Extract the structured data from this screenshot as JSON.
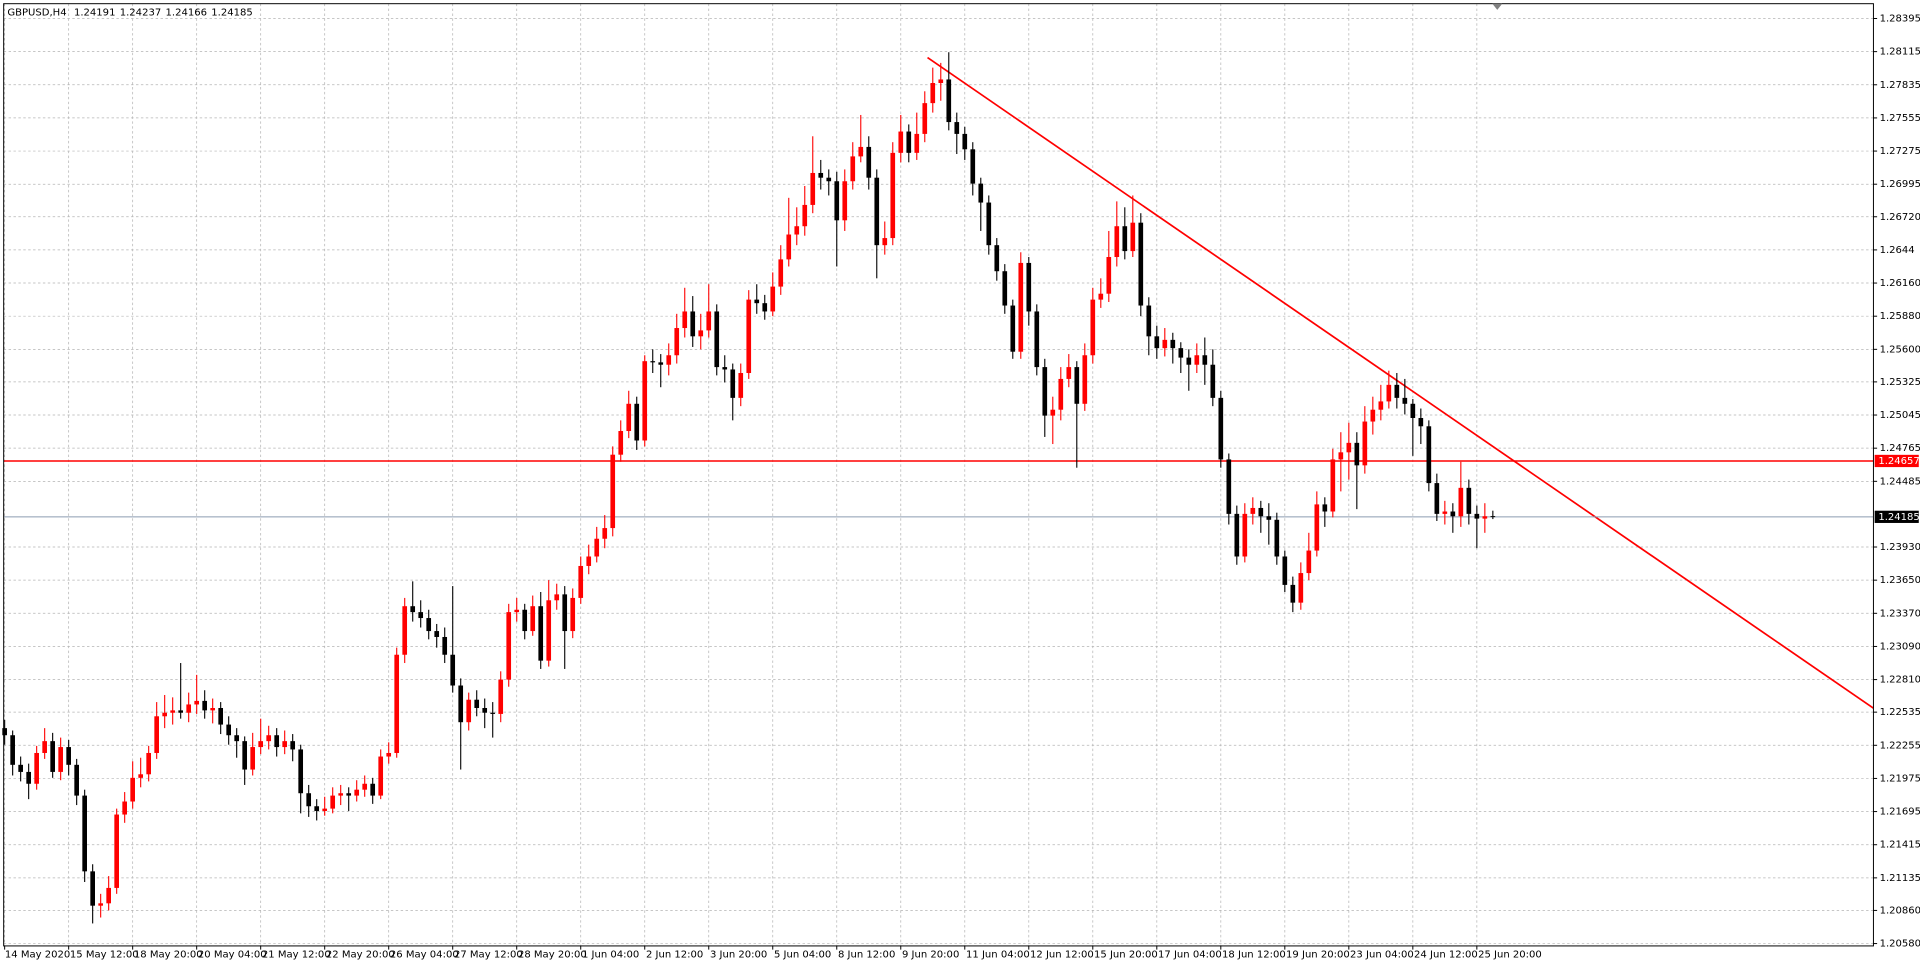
{
  "chart_data": {
    "type": "candlestick",
    "symbol": "GBPUSD,H4",
    "up_color": "#ff0000",
    "down_color": "#000000",
    "grid": true,
    "ylim": [
      1.2056,
      1.2852
    ],
    "yticks": [
      1.28395,
      1.28115,
      1.27835,
      1.27555,
      1.27275,
      1.26995,
      {
        "value": 1.2672,
        "label": "1.26720"
      },
      1.2644,
      {
        "value": 1.2616,
        "label": "1.26160"
      },
      {
        "value": 1.2588,
        "label": "1.25880"
      },
      {
        "value": 1.256,
        "label": "1.25600"
      },
      1.25325,
      1.25045,
      1.24765,
      1.24485,
      {
        "value": 1.2393,
        "label": "1.23930"
      },
      {
        "value": 1.2365,
        "label": "1.23650"
      },
      {
        "value": 1.2337,
        "label": "1.23370"
      },
      {
        "value": 1.2309,
        "label": "1.23090"
      },
      {
        "value": 1.2281,
        "label": "1.22810"
      },
      1.22535,
      1.22255,
      1.21975,
      1.21695,
      1.21415,
      1.21135,
      {
        "value": 1.2086,
        "label": "1.20860"
      },
      {
        "value": 1.2058,
        "label": "1.20580"
      }
    ],
    "levels": [
      1.24657
    ],
    "categories": [
      "14 May 2020",
      null,
      null,
      null,
      null,
      null,
      null,
      null,
      "15 May 12:00",
      null,
      null,
      null,
      null,
      null,
      null,
      null,
      "18 May 20:00",
      null,
      null,
      null,
      null,
      null,
      null,
      null,
      "20 May 04:00",
      null,
      null,
      null,
      null,
      null,
      null,
      null,
      "21 May 12:00",
      null,
      null,
      null,
      null,
      null,
      null,
      null,
      "22 May 20:00",
      null,
      null,
      null,
      null,
      null,
      null,
      null,
      "26 May 04:00",
      null,
      null,
      null,
      null,
      null,
      null,
      null,
      "27 May 12:00",
      null,
      null,
      null,
      null,
      null,
      null,
      null,
      "28 May 20:00",
      null,
      null,
      null,
      null,
      null,
      null,
      null,
      "1 Jun 04:00",
      null,
      null,
      null,
      null,
      null,
      null,
      null,
      "2 Jun 12:00",
      null,
      null,
      null,
      null,
      null,
      null,
      null,
      "3 Jun 20:00",
      null,
      null,
      null,
      null,
      null,
      null,
      null,
      "5 Jun 04:00",
      null,
      null,
      null,
      null,
      null,
      null,
      null,
      "8 Jun 12:00",
      null,
      null,
      null,
      null,
      null,
      null,
      null,
      "9 Jun 20:00",
      null,
      null,
      null,
      null,
      null,
      null,
      null,
      "11 Jun 04:00",
      null,
      null,
      null,
      null,
      null,
      null,
      null,
      "12 Jun 12:00",
      null,
      null,
      null,
      null,
      null,
      null,
      null,
      "15 Jun 20:00",
      null,
      null,
      null,
      null,
      null,
      null,
      null,
      "17 Jun 04:00",
      null,
      null,
      null,
      null,
      null,
      null,
      null,
      "18 Jun 12:00",
      null,
      null,
      null,
      null,
      null,
      null,
      null,
      "19 Jun 20:00",
      null,
      null,
      null,
      null,
      null,
      null,
      null,
      "23 Jun 04:00",
      null,
      null,
      null,
      null,
      null,
      null,
      null,
      "24 Jun 12:00",
      null,
      null,
      null,
      null,
      null,
      null,
      null,
      "25 Jun 20:00",
      null,
      null
    ],
    "ohlc": [
      [
        1.224,
        1.2247,
        1.2226,
        1.2234
      ],
      [
        1.2234,
        1.2238,
        1.22,
        1.2209
      ],
      [
        1.2209,
        1.2216,
        1.2195,
        1.2203
      ],
      [
        1.2203,
        1.221,
        1.218,
        1.2193
      ],
      [
        1.2193,
        1.2225,
        1.2188,
        1.2219
      ],
      [
        1.2219,
        1.224,
        1.2214,
        1.2229
      ],
      [
        1.2229,
        1.2236,
        1.2198,
        1.2203
      ],
      [
        1.2203,
        1.2232,
        1.2196,
        1.2224
      ],
      [
        1.2224,
        1.223,
        1.22,
        1.2209
      ],
      [
        1.2209,
        1.2214,
        1.2175,
        1.2183
      ],
      [
        1.2183,
        1.2188,
        1.211,
        1.2119
      ],
      [
        1.2119,
        1.2125,
        1.2075,
        1.209
      ],
      [
        1.209,
        1.21,
        1.208,
        1.2092
      ],
      [
        1.2092,
        1.2115,
        1.2086,
        1.2105
      ],
      [
        1.2105,
        1.2172,
        1.21,
        1.2167
      ],
      [
        1.2167,
        1.2186,
        1.216,
        1.2178
      ],
      [
        1.2178,
        1.2212,
        1.2172,
        1.2198
      ],
      [
        1.2198,
        1.2215,
        1.219,
        1.2201
      ],
      [
        1.2201,
        1.2225,
        1.2195,
        1.2219
      ],
      [
        1.2219,
        1.2262,
        1.2214,
        1.225
      ],
      [
        1.225,
        1.2268,
        1.224,
        1.2253
      ],
      [
        1.2253,
        1.2266,
        1.2243,
        1.2255
      ],
      [
        1.2255,
        1.2295,
        1.2248,
        1.2253
      ],
      [
        1.2253,
        1.227,
        1.2245,
        1.226
      ],
      [
        1.226,
        1.2285,
        1.2252,
        1.2263
      ],
      [
        1.2263,
        1.2272,
        1.2248,
        1.2255
      ],
      [
        1.2255,
        1.2265,
        1.2244,
        1.2257
      ],
      [
        1.2257,
        1.2262,
        1.2235,
        1.2243
      ],
      [
        1.2243,
        1.225,
        1.2226,
        1.2234
      ],
      [
        1.2234,
        1.224,
        1.2215,
        1.2229
      ],
      [
        1.2229,
        1.2233,
        1.2192,
        1.2205
      ],
      [
        1.2205,
        1.2236,
        1.22,
        1.2224
      ],
      [
        1.2224,
        1.2248,
        1.2218,
        1.2229
      ],
      [
        1.2229,
        1.2242,
        1.2222,
        1.2234
      ],
      [
        1.2234,
        1.224,
        1.2216,
        1.2224
      ],
      [
        1.2224,
        1.2238,
        1.2218,
        1.2229
      ],
      [
        1.2229,
        1.2235,
        1.2212,
        1.2222
      ],
      [
        1.2222,
        1.2226,
        1.2168,
        1.2185
      ],
      [
        1.2185,
        1.2192,
        1.2165,
        1.2174
      ],
      [
        1.2174,
        1.218,
        1.2162,
        1.217
      ],
      [
        1.217,
        1.2182,
        1.2166,
        1.2172
      ],
      [
        1.2172,
        1.219,
        1.2168,
        1.2183
      ],
      [
        1.2183,
        1.2192,
        1.2175,
        1.2185
      ],
      [
        1.2185,
        1.219,
        1.217,
        1.2183
      ],
      [
        1.2183,
        1.2196,
        1.2178,
        1.2188
      ],
      [
        1.2188,
        1.22,
        1.2182,
        1.2193
      ],
      [
        1.2193,
        1.2198,
        1.2176,
        1.2183
      ],
      [
        1.2183,
        1.2222,
        1.218,
        1.2216
      ],
      [
        1.2216,
        1.2228,
        1.221,
        1.2219
      ],
      [
        1.2219,
        1.2308,
        1.2215,
        1.2302
      ],
      [
        1.2302,
        1.235,
        1.2295,
        1.2343
      ],
      [
        1.2343,
        1.2364,
        1.233,
        1.2338
      ],
      [
        1.2338,
        1.2348,
        1.2325,
        1.2333
      ],
      [
        1.2333,
        1.234,
        1.2315,
        1.2322
      ],
      [
        1.2322,
        1.2328,
        1.2308,
        1.2317
      ],
      [
        1.2317,
        1.2325,
        1.2295,
        1.2302
      ],
      [
        1.2302,
        1.236,
        1.227,
        1.2276
      ],
      [
        1.2276,
        1.2282,
        1.2205,
        1.2245
      ],
      [
        1.2245,
        1.227,
        1.2238,
        1.2264
      ],
      [
        1.2264,
        1.2272,
        1.225,
        1.2257
      ],
      [
        1.2257,
        1.2265,
        1.224,
        1.2253
      ],
      [
        1.2253,
        1.2262,
        1.2232,
        1.2252
      ],
      [
        1.2252,
        1.2288,
        1.2245,
        1.2281
      ],
      [
        1.2281,
        1.2345,
        1.2275,
        1.2338
      ],
      [
        1.2338,
        1.235,
        1.233,
        1.234
      ],
      [
        1.234,
        1.2345,
        1.2315,
        1.2322
      ],
      [
        1.2322,
        1.2352,
        1.2318,
        1.2343
      ],
      [
        1.2343,
        1.2355,
        1.229,
        1.2297
      ],
      [
        1.2297,
        1.2365,
        1.2292,
        1.2348
      ],
      [
        1.2348,
        1.2362,
        1.234,
        1.2353
      ],
      [
        1.2353,
        1.236,
        1.229,
        1.2322
      ],
      [
        1.2322,
        1.2358,
        1.2316,
        1.235
      ],
      [
        1.235,
        1.2385,
        1.2345,
        1.2377
      ],
      [
        1.2377,
        1.2395,
        1.237,
        1.2385
      ],
      [
        1.2385,
        1.241,
        1.238,
        1.24
      ],
      [
        1.24,
        1.242,
        1.2392,
        1.2409
      ],
      [
        1.2409,
        1.2478,
        1.2402,
        1.2471
      ],
      [
        1.2471,
        1.25,
        1.2465,
        1.2491
      ],
      [
        1.2491,
        1.2525,
        1.2485,
        1.2514
      ],
      [
        1.2514,
        1.252,
        1.2475,
        1.2483
      ],
      [
        1.2483,
        1.2555,
        1.2478,
        1.255
      ],
      [
        1.255,
        1.256,
        1.254,
        1.2549
      ],
      [
        1.2549,
        1.2556,
        1.2528,
        1.2547
      ],
      [
        1.2547,
        1.2565,
        1.2538,
        1.2555
      ],
      [
        1.2555,
        1.259,
        1.2548,
        1.2578
      ],
      [
        1.2578,
        1.2612,
        1.257,
        1.2592
      ],
      [
        1.2592,
        1.2605,
        1.2562,
        1.2571
      ],
      [
        1.2571,
        1.259,
        1.256,
        1.2576
      ],
      [
        1.2576,
        1.2615,
        1.257,
        1.2592
      ],
      [
        1.2592,
        1.2598,
        1.2538,
        1.2545
      ],
      [
        1.2545,
        1.2555,
        1.2532,
        1.2543
      ],
      [
        1.2543,
        1.2548,
        1.25,
        1.2519
      ],
      [
        1.2519,
        1.2548,
        1.2512,
        1.254
      ],
      [
        1.254,
        1.261,
        1.2535,
        1.2602
      ],
      [
        1.2602,
        1.2615,
        1.259,
        1.2599
      ],
      [
        1.2599,
        1.2606,
        1.2585,
        1.2592
      ],
      [
        1.2592,
        1.2625,
        1.2588,
        1.2613
      ],
      [
        1.2613,
        1.2648,
        1.2606,
        1.2636
      ],
      [
        1.2636,
        1.2688,
        1.263,
        1.2657
      ],
      [
        1.2657,
        1.268,
        1.2648,
        1.2664
      ],
      [
        1.2664,
        1.2698,
        1.2656,
        1.2682
      ],
      [
        1.2682,
        1.274,
        1.2675,
        1.2709
      ],
      [
        1.2709,
        1.272,
        1.2695,
        1.2705
      ],
      [
        1.2705,
        1.2712,
        1.269,
        1.2702
      ],
      [
        1.2702,
        1.271,
        1.263,
        1.2669
      ],
      [
        1.2669,
        1.2712,
        1.266,
        1.2702
      ],
      [
        1.2702,
        1.2735,
        1.2695,
        1.2723
      ],
      [
        1.2723,
        1.2758,
        1.2718,
        1.2731
      ],
      [
        1.2731,
        1.274,
        1.2695,
        1.2705
      ],
      [
        1.2705,
        1.2712,
        1.262,
        1.2648
      ],
      [
        1.2648,
        1.2668,
        1.264,
        1.2654
      ],
      [
        1.2654,
        1.2735,
        1.2648,
        1.2726
      ],
      [
        1.2726,
        1.2758,
        1.2718,
        1.2744
      ],
      [
        1.2744,
        1.275,
        1.2718,
        1.2726
      ],
      [
        1.2726,
        1.276,
        1.272,
        1.2742
      ],
      [
        1.2742,
        1.2778,
        1.2735,
        1.2768
      ],
      [
        1.2768,
        1.2798,
        1.276,
        1.2785
      ],
      [
        1.2785,
        1.2802,
        1.277,
        1.2788
      ],
      [
        1.2788,
        1.2811,
        1.2745,
        1.2752
      ],
      [
        1.2752,
        1.276,
        1.2725,
        1.2742
      ],
      [
        1.2742,
        1.2748,
        1.272,
        1.2729
      ],
      [
        1.2729,
        1.2735,
        1.269,
        1.27
      ],
      [
        1.27,
        1.2705,
        1.266,
        1.2684
      ],
      [
        1.2684,
        1.269,
        1.264,
        1.2648
      ],
      [
        1.2648,
        1.2654,
        1.2618,
        1.2626
      ],
      [
        1.2626,
        1.2632,
        1.259,
        1.2597
      ],
      [
        1.2597,
        1.2602,
        1.2552,
        1.2558
      ],
      [
        1.2558,
        1.2642,
        1.2552,
        1.2633
      ],
      [
        1.2633,
        1.2638,
        1.258,
        1.2592
      ],
      [
        1.2592,
        1.2598,
        1.2538,
        1.2545
      ],
      [
        1.2545,
        1.2552,
        1.2486,
        1.2504
      ],
      [
        1.2504,
        1.252,
        1.248,
        1.2509
      ],
      [
        1.2509,
        1.2545,
        1.25,
        1.2535
      ],
      [
        1.2535,
        1.2556,
        1.2528,
        1.2545
      ],
      [
        1.2545,
        1.255,
        1.246,
        1.2514
      ],
      [
        1.2514,
        1.2565,
        1.2508,
        1.2555
      ],
      [
        1.2555,
        1.2612,
        1.2548,
        1.2602
      ],
      [
        1.2602,
        1.262,
        1.2595,
        1.2607
      ],
      [
        1.2607,
        1.266,
        1.26,
        1.2638
      ],
      [
        1.2638,
        1.2685,
        1.263,
        1.2664
      ],
      [
        1.2664,
        1.268,
        1.2636,
        1.2643
      ],
      [
        1.2643,
        1.269,
        1.2638,
        1.2667
      ],
      [
        1.2667,
        1.2675,
        1.2588,
        1.2597
      ],
      [
        1.2597,
        1.2604,
        1.2555,
        1.2571
      ],
      [
        1.2571,
        1.258,
        1.2552,
        1.2561
      ],
      [
        1.2561,
        1.2578,
        1.2554,
        1.2568
      ],
      [
        1.2568,
        1.2574,
        1.2548,
        1.2561
      ],
      [
        1.2561,
        1.2566,
        1.254,
        1.2553
      ],
      [
        1.2553,
        1.256,
        1.2525,
        1.2547
      ],
      [
        1.2547,
        1.2565,
        1.254,
        1.2555
      ],
      [
        1.2555,
        1.257,
        1.253,
        1.2547
      ],
      [
        1.2547,
        1.256,
        1.2512,
        1.2519
      ],
      [
        1.2519,
        1.2525,
        1.246,
        1.2467
      ],
      [
        1.2467,
        1.2472,
        1.2412,
        1.2421
      ],
      [
        1.2421,
        1.2428,
        1.2378,
        1.2385
      ],
      [
        1.2385,
        1.243,
        1.238,
        1.2421
      ],
      [
        1.2421,
        1.2435,
        1.2412,
        1.2426
      ],
      [
        1.2426,
        1.2432,
        1.2405,
        1.2419
      ],
      [
        1.2419,
        1.243,
        1.2395,
        1.2416
      ],
      [
        1.2416,
        1.2422,
        1.2378,
        1.2385
      ],
      [
        1.2385,
        1.239,
        1.2355,
        1.2361
      ],
      [
        1.2361,
        1.2368,
        1.2338,
        1.2346
      ],
      [
        1.2346,
        1.238,
        1.234,
        1.2371
      ],
      [
        1.2371,
        1.2405,
        1.2365,
        1.239
      ],
      [
        1.239,
        1.244,
        1.2385,
        1.2429
      ],
      [
        1.2429,
        1.2435,
        1.241,
        1.2423
      ],
      [
        1.2423,
        1.2476,
        1.2418,
        1.2467
      ],
      [
        1.2467,
        1.249,
        1.244,
        1.2473
      ],
      [
        1.2473,
        1.2498,
        1.245,
        1.2481
      ],
      [
        1.2481,
        1.249,
        1.2425,
        1.2462
      ],
      [
        1.2462,
        1.2512,
        1.2455,
        1.2499
      ],
      [
        1.2499,
        1.252,
        1.2488,
        1.2509
      ],
      [
        1.2509,
        1.253,
        1.25,
        1.2516
      ],
      [
        1.2516,
        1.2542,
        1.251,
        1.253
      ],
      [
        1.253,
        1.254,
        1.251,
        1.2519
      ],
      [
        1.2519,
        1.2535,
        1.2505,
        1.2514
      ],
      [
        1.2514,
        1.2518,
        1.247,
        1.2502
      ],
      [
        1.2502,
        1.251,
        1.248,
        1.2495
      ],
      [
        1.2495,
        1.25,
        1.244,
        1.2447
      ],
      [
        1.2447,
        1.2455,
        1.2415,
        1.2421
      ],
      [
        1.2421,
        1.2432,
        1.2412,
        1.2423
      ],
      [
        1.2423,
        1.243,
        1.2405,
        1.2419
      ],
      [
        1.2419,
        1.2465,
        1.241,
        1.2443
      ],
      [
        1.2443,
        1.245,
        1.2412,
        1.2421
      ],
      [
        1.2421,
        1.2428,
        1.2392,
        1.2417
      ],
      [
        1.2417,
        1.243,
        1.2405,
        1.2419
      ],
      [
        1.24191,
        1.24237,
        1.24166,
        1.24185
      ]
    ]
  }
}
